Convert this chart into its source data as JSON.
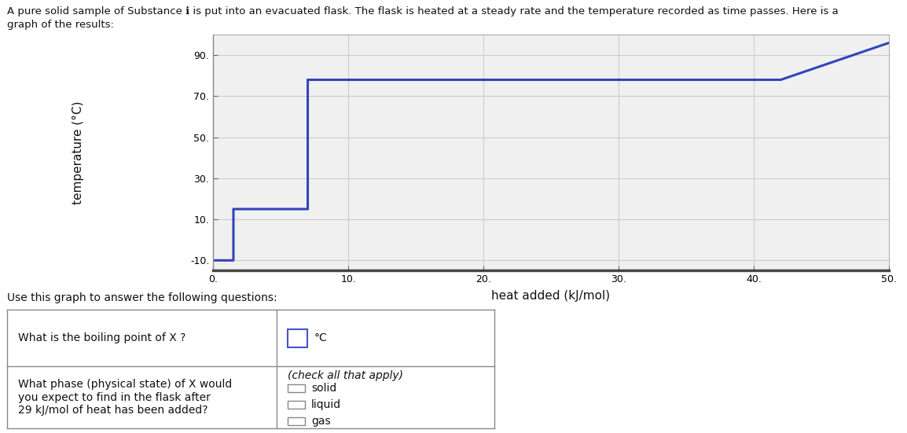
{
  "x_data": [
    0,
    1.5,
    1.5,
    7,
    7,
    17,
    17,
    42,
    42,
    50
  ],
  "y_data": [
    -10,
    -10,
    15,
    15,
    78,
    78,
    78,
    78,
    78,
    96
  ],
  "line_color": "#3344bb",
  "line_width": 2.2,
  "xlabel": "heat added (kJ/mol)",
  "ylabel": "temperature (°C)",
  "title_line1": "A pure solid sample of Substance ℹ is put into an evacuated flask. The flask is heated at a steady rate and the temperature recorded as time passes. Here is a",
  "title_line2": "graph of the results:",
  "xlim": [
    0,
    50
  ],
  "ylim": [
    -15,
    100
  ],
  "xticks": [
    0,
    10,
    20,
    30,
    40,
    50
  ],
  "yticks": [
    -10,
    10,
    30,
    50,
    70,
    90
  ],
  "xtick_labels": [
    "0.",
    "10.",
    "20.",
    "30.",
    "40.",
    "50."
  ],
  "ytick_labels": [
    "-10.",
    "10.",
    "30.",
    "50.",
    "70.",
    "90."
  ],
  "grid_color": "#cccccc",
  "bg_color": "#ffffff",
  "plot_bg_color": "#f0f0f0",
  "use_this_graph_text": "Use this graph to answer the following questions:",
  "table_q1": "What is the boiling point of X ?",
  "table_q2_line1": "What phase (physical state) of X would",
  "table_q2_line2": "you expect to find in the flask after",
  "table_q2_line3": "29 kJ/mol of heat has been added?",
  "table_q2_header": "(check all that apply)",
  "table_q2_opts": [
    "solid",
    "liquid",
    "gas"
  ],
  "input_box_color": "#4455cc",
  "checkbox_color": "#888888"
}
